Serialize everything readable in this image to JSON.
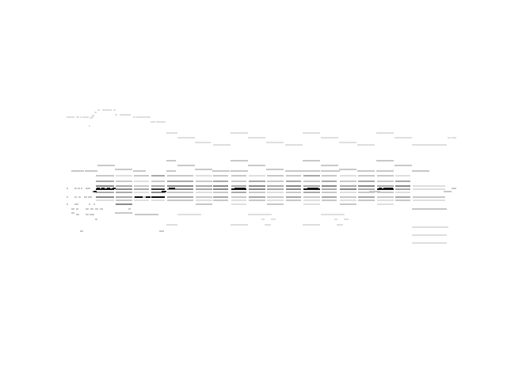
{
  "screen": {
    "description_note": "",
    "background": "#ffffff",
    "ink_colors": [
      "#111111",
      "#3a3a3a",
      "#8a8a8a",
      "#a9a9a9",
      "#c8c8c8",
      "#dedede",
      "#ececec"
    ]
  }
}
